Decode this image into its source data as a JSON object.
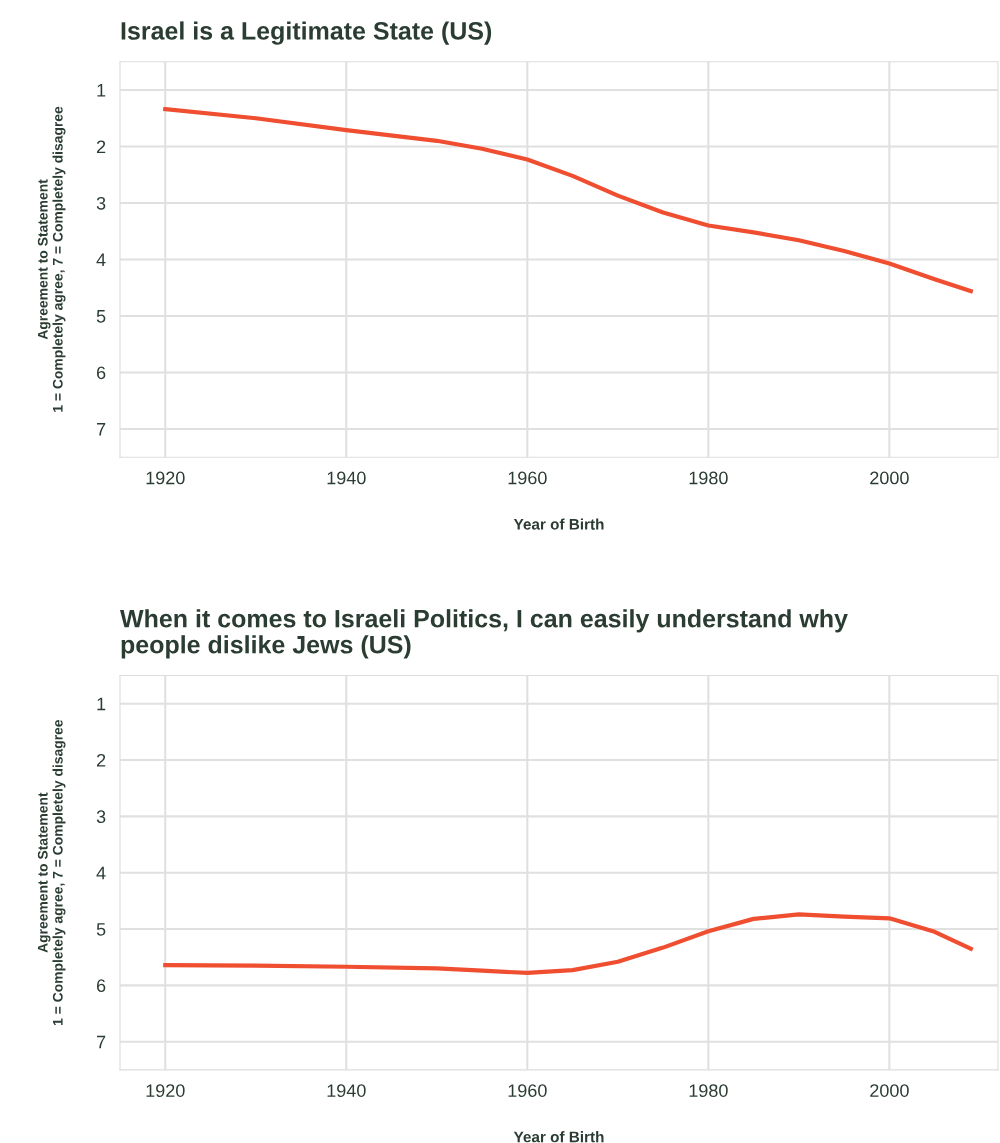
{
  "chart_data": [
    {
      "type": "line",
      "title": "Israel is a Legitimate State (US)",
      "xlabel": "Year of Birth",
      "ylabel": "Agreement to Statement\n1 = Completely agree, 7 = Completely disagree",
      "x": [
        1920,
        1930,
        1940,
        1950,
        1955,
        1960,
        1965,
        1970,
        1975,
        1980,
        1985,
        1990,
        1995,
        2000,
        2005,
        2009
      ],
      "series": [
        {
          "color": "#f04e30",
          "values": [
            1.34,
            1.5,
            1.71,
            1.9,
            2.04,
            2.23,
            2.52,
            2.87,
            3.17,
            3.4,
            3.52,
            3.66,
            3.85,
            4.07,
            4.35,
            4.56
          ]
        }
      ],
      "xlim": [
        1915,
        2012
      ],
      "ylim": [
        7.5,
        0.5
      ],
      "xticks": [
        1920,
        1940,
        1960,
        1980,
        2000
      ],
      "yticks": [
        1,
        2,
        3,
        4,
        5,
        6,
        7
      ],
      "grid": true,
      "marker": "none",
      "line_style": "solid"
    },
    {
      "type": "line",
      "title": "When it comes to Israeli Politics, I can easily understand why people dislike Jews (US)",
      "xlabel": "Year of Birth",
      "ylabel": "Agreement to Statement\n1 = Completely agree, 7 = Completely disagree",
      "x": [
        1920,
        1930,
        1940,
        1950,
        1955,
        1960,
        1965,
        1970,
        1975,
        1980,
        1985,
        1990,
        1995,
        2000,
        2005,
        2009
      ],
      "series": [
        {
          "color": "#f04e30",
          "values": [
            5.64,
            5.65,
            5.67,
            5.7,
            5.74,
            5.78,
            5.73,
            5.58,
            5.33,
            5.04,
            4.82,
            4.74,
            4.78,
            4.81,
            5.05,
            5.35
          ]
        }
      ],
      "xlim": [
        1915,
        2012
      ],
      "ylim": [
        7.5,
        0.5
      ],
      "xticks": [
        1920,
        1940,
        1960,
        1980,
        2000
      ],
      "yticks": [
        1,
        2,
        3,
        4,
        5,
        6,
        7
      ],
      "grid": true,
      "marker": "none",
      "line_style": "solid"
    }
  ]
}
